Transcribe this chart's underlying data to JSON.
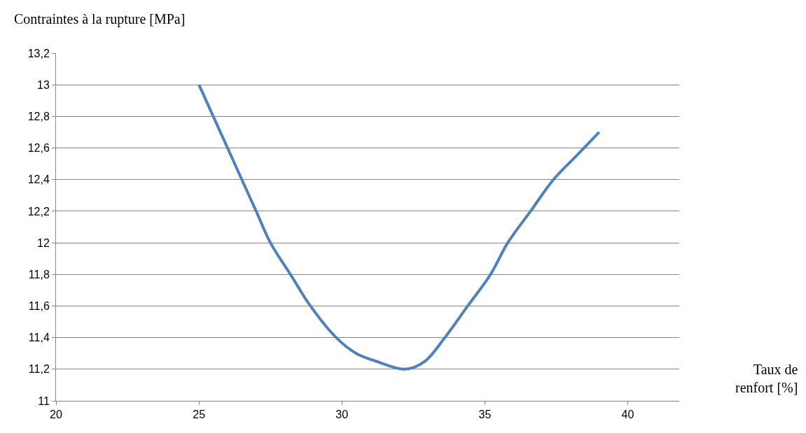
{
  "chart_data": {
    "type": "line",
    "ylabel": "Contraintes à la rupture [MPa]",
    "xlabel": "Taux de renfort [%]",
    "series": [
      {
        "color": "#4f81bd",
        "x": [
          25,
          25.5,
          26,
          27,
          27.5,
          28.2,
          28.9,
          29.8,
          30.5,
          31.2,
          32.2,
          32.9,
          33.6,
          34.4,
          35.2,
          35.8,
          36.6,
          37.4,
          38.2,
          39
        ],
        "values": [
          13,
          12.8,
          12.6,
          12.2,
          12.0,
          11.8,
          11.6,
          11.4,
          11.3,
          11.25,
          11.2,
          11.25,
          11.4,
          11.6,
          11.8,
          12.0,
          12.2,
          12.4,
          12.55,
          12.7
        ]
      }
    ],
    "xlim": [
      20,
      41.8
    ],
    "xticks": [
      20,
      25,
      30,
      35,
      40
    ],
    "ylim": [
      11,
      13.2
    ],
    "yticks": [
      {
        "value": 11,
        "label": "11"
      },
      {
        "value": 11.2,
        "label": "11,2"
      },
      {
        "value": 11.4,
        "label": "11,4"
      },
      {
        "value": 11.6,
        "label": "11,6"
      },
      {
        "value": 11.8,
        "label": "11,8"
      },
      {
        "value": 12,
        "label": "12"
      },
      {
        "value": 12.2,
        "label": "12,2"
      },
      {
        "value": 12.4,
        "label": "12,4"
      },
      {
        "value": 12.6,
        "label": "12,6"
      },
      {
        "value": 12.8,
        "label": "12,8"
      },
      {
        "value": 13,
        "label": "13"
      },
      {
        "value": 13.2,
        "label": "13,2"
      }
    ],
    "grid": "y",
    "marker": "none",
    "line_style": "solid"
  }
}
